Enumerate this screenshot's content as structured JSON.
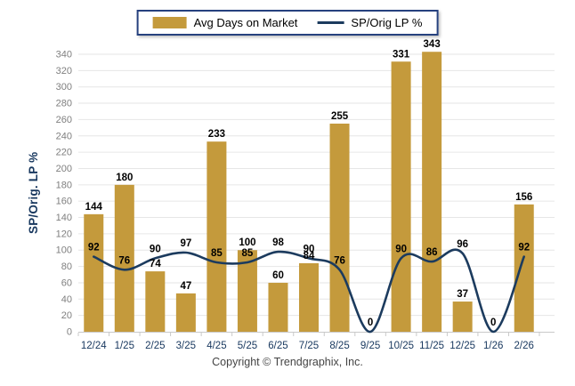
{
  "legend": {
    "bar_label": "Avg Days on Market",
    "line_label": "SP/Orig LP %"
  },
  "y_axis": {
    "title": "SP/Orig. LP %",
    "min": 0,
    "max": 340,
    "step": 20
  },
  "footer": {
    "copyright": "Copyright © Trendgraphix, Inc."
  },
  "colors": {
    "bar": "#C49A3C",
    "line": "#1C3B5E",
    "grid": "#E6E6E6",
    "axis": "#C9C9C9",
    "y_tick_text": "#7F7F7F",
    "x_tick_text": "#17375E",
    "value_label_text": "#000000",
    "legend_border": "#26417E",
    "background": "#FFFFFF"
  },
  "chart_data": {
    "type": "bar+line",
    "categories": [
      "12/24",
      "1/25",
      "2/25",
      "3/25",
      "4/25",
      "5/25",
      "6/25",
      "7/25",
      "8/25",
      "9/25",
      "10/25",
      "11/25",
      "12/25",
      "1/26",
      "2/26"
    ],
    "series": [
      {
        "name": "Avg Days on Market",
        "type": "bar",
        "color": "#C49A3C",
        "values": [
          144,
          180,
          74,
          47,
          233,
          100,
          60,
          84,
          255,
          0,
          331,
          343,
          37,
          0,
          156
        ]
      },
      {
        "name": "SP/Orig LP %",
        "type": "line",
        "color": "#1C3B5E",
        "values": [
          92,
          76,
          90,
          97,
          85,
          85,
          98,
          90,
          76,
          0,
          90,
          86,
          96,
          0,
          92
        ]
      }
    ],
    "ylabel": "SP/Orig. LP %",
    "ylim": [
      0,
      340
    ],
    "ytick_step": 20,
    "grid": true,
    "legend_position": "top-center",
    "value_labels": true
  }
}
